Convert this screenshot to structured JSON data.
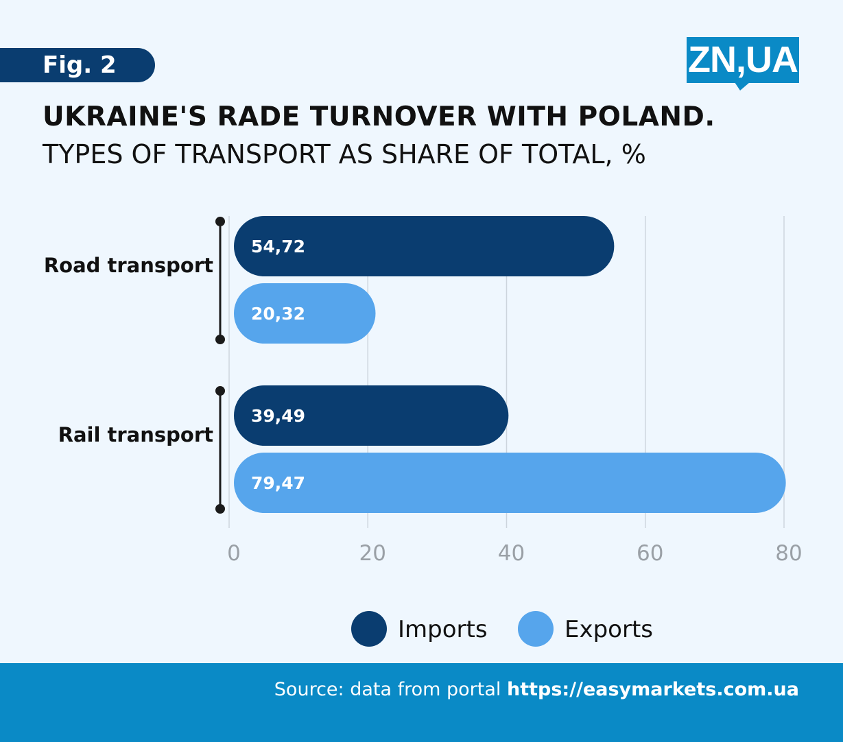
{
  "fig_label": "Fig. 2",
  "logo": "ZN,UA",
  "title": "UKRAINE'S RADE TURNOVER WITH POLAND.",
  "subtitle": "TYPES OF TRANSPORT AS SHARE OF TOTAL, %",
  "source": {
    "prefix": "Source: data from portal ",
    "link": "https://easymarkets.com.ua"
  },
  "chart_data": {
    "type": "bar",
    "orientation": "horizontal",
    "categories": [
      "Road transport",
      "Rail transport"
    ],
    "series": [
      {
        "name": "Imports",
        "values": [
          54.72,
          39.49
        ],
        "labels": [
          "54,72",
          "39,49"
        ],
        "color": "#0a3d70"
      },
      {
        "name": "Exports",
        "values": [
          20.32,
          79.47
        ],
        "labels": [
          "20,32",
          "79,47"
        ],
        "color": "#56a5ec"
      }
    ],
    "xlim": [
      0,
      80
    ],
    "xticks": [
      "0",
      "20",
      "40",
      "60",
      "80"
    ],
    "grid": true,
    "legend": "bottom"
  }
}
